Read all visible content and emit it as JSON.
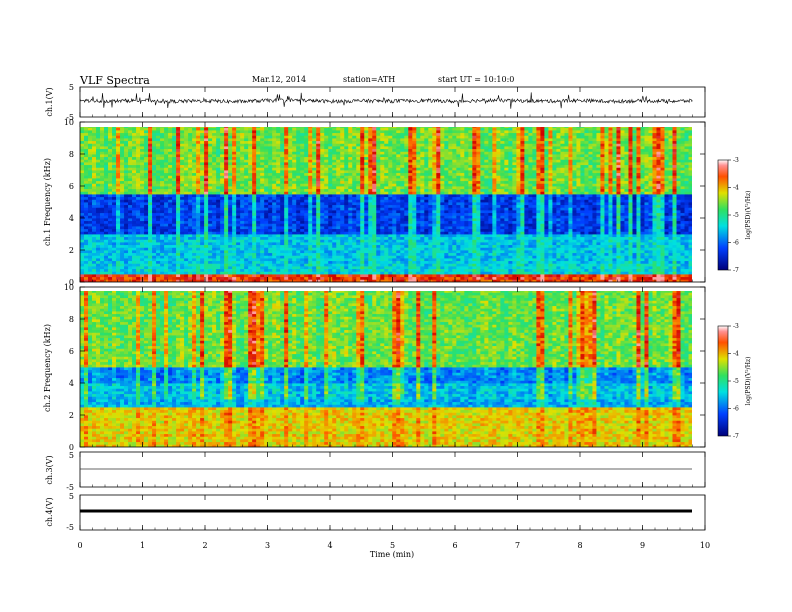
{
  "header": {
    "title": "VLF  Spectra",
    "date": "Mar.12, 2014",
    "station": "station=ATH",
    "start": "start  UT =   10:10:0"
  },
  "chart_data": [
    {
      "type": "line",
      "panel": "ch1-waveform",
      "ylabel": "ch.1(V)",
      "ylim": [
        -5,
        5
      ],
      "yticks": [
        "5",
        "-5"
      ],
      "x": [
        0,
        0.5,
        1,
        1.5,
        2,
        2.5,
        3,
        3.5,
        4,
        4.5,
        5,
        5.5,
        6,
        6.5,
        7,
        7.5,
        8,
        8.5,
        9,
        9.5,
        9.8
      ],
      "values": [
        0.5,
        0.3,
        0.6,
        0.2,
        0.4,
        0.1,
        0.5,
        0.6,
        0.2,
        0.4,
        0.3,
        0.5,
        0.2,
        0.6,
        0.4,
        0.3,
        0.5,
        0.2,
        0.4,
        0.3,
        0.4
      ]
    },
    {
      "type": "heatmap",
      "panel": "ch1-spectrogram",
      "ylabel": "ch.1 Frequency  (kHz)",
      "ylim": [
        0,
        10
      ],
      "yticks": [
        "0",
        "2",
        "4",
        "6",
        "8",
        "10"
      ],
      "colorbar": {
        "label": "log(PSD)(V²/Hz)",
        "range": [
          -7,
          -3
        ],
        "ticks": [
          "-3",
          "-4",
          "-5",
          "-6",
          "-7"
        ]
      },
      "bands": [
        {
          "f0": 0,
          "f1": 0.5,
          "level": -3.5
        },
        {
          "f0": 0.5,
          "f1": 1.2,
          "level": -5.5
        },
        {
          "f0": 1.2,
          "f1": 3.0,
          "level": -5.6
        },
        {
          "f0": 3.0,
          "f1": 5.5,
          "level": -6.5
        },
        {
          "f0": 5.5,
          "f1": 10,
          "level": -4.8
        }
      ]
    },
    {
      "type": "heatmap",
      "panel": "ch2-spectrogram",
      "ylabel": "ch.2 Frequency  (kHz)",
      "ylim": [
        0,
        10
      ],
      "yticks": [
        "0",
        "2",
        "4",
        "6",
        "8",
        "10"
      ],
      "colorbar": {
        "label": "log(PSD)(V²/Hz)",
        "range": [
          -7,
          -3
        ],
        "ticks": [
          "-3",
          "-4",
          "-5",
          "-6",
          "-7"
        ]
      },
      "bands": [
        {
          "f0": 0,
          "f1": 2.5,
          "level": -4.2
        },
        {
          "f0": 2.5,
          "f1": 4.0,
          "level": -5.7
        },
        {
          "f0": 4.0,
          "f1": 5.0,
          "level": -6.0
        },
        {
          "f0": 5.0,
          "f1": 10,
          "level": -4.8
        }
      ]
    },
    {
      "type": "line",
      "panel": "ch3-waveform",
      "ylabel": "ch.3(V)",
      "ylim": [
        -5,
        5
      ],
      "yticks": [
        "5",
        "-5"
      ],
      "x": [
        0,
        9.8
      ],
      "values": [
        0.5,
        0.5
      ]
    },
    {
      "type": "line",
      "panel": "ch4-waveform",
      "ylabel": "ch.4(V)",
      "ylim": [
        -5,
        5
      ],
      "yticks": [
        "5",
        "-5"
      ],
      "x": [
        0,
        9.8
      ],
      "values": [
        0,
        0
      ]
    }
  ],
  "xaxis": {
    "label": "Time  (min)",
    "range": [
      0,
      10
    ],
    "ticks": [
      "0",
      "1",
      "2",
      "3",
      "4",
      "5",
      "6",
      "7",
      "8",
      "9",
      "10"
    ]
  },
  "colors": {
    "dark_blue": "#00007a",
    "blue": "#0040ff",
    "cyan": "#00e0e0",
    "green": "#30e060",
    "yellow": "#e0e000",
    "orange": "#ff8000",
    "red": "#d00000"
  }
}
